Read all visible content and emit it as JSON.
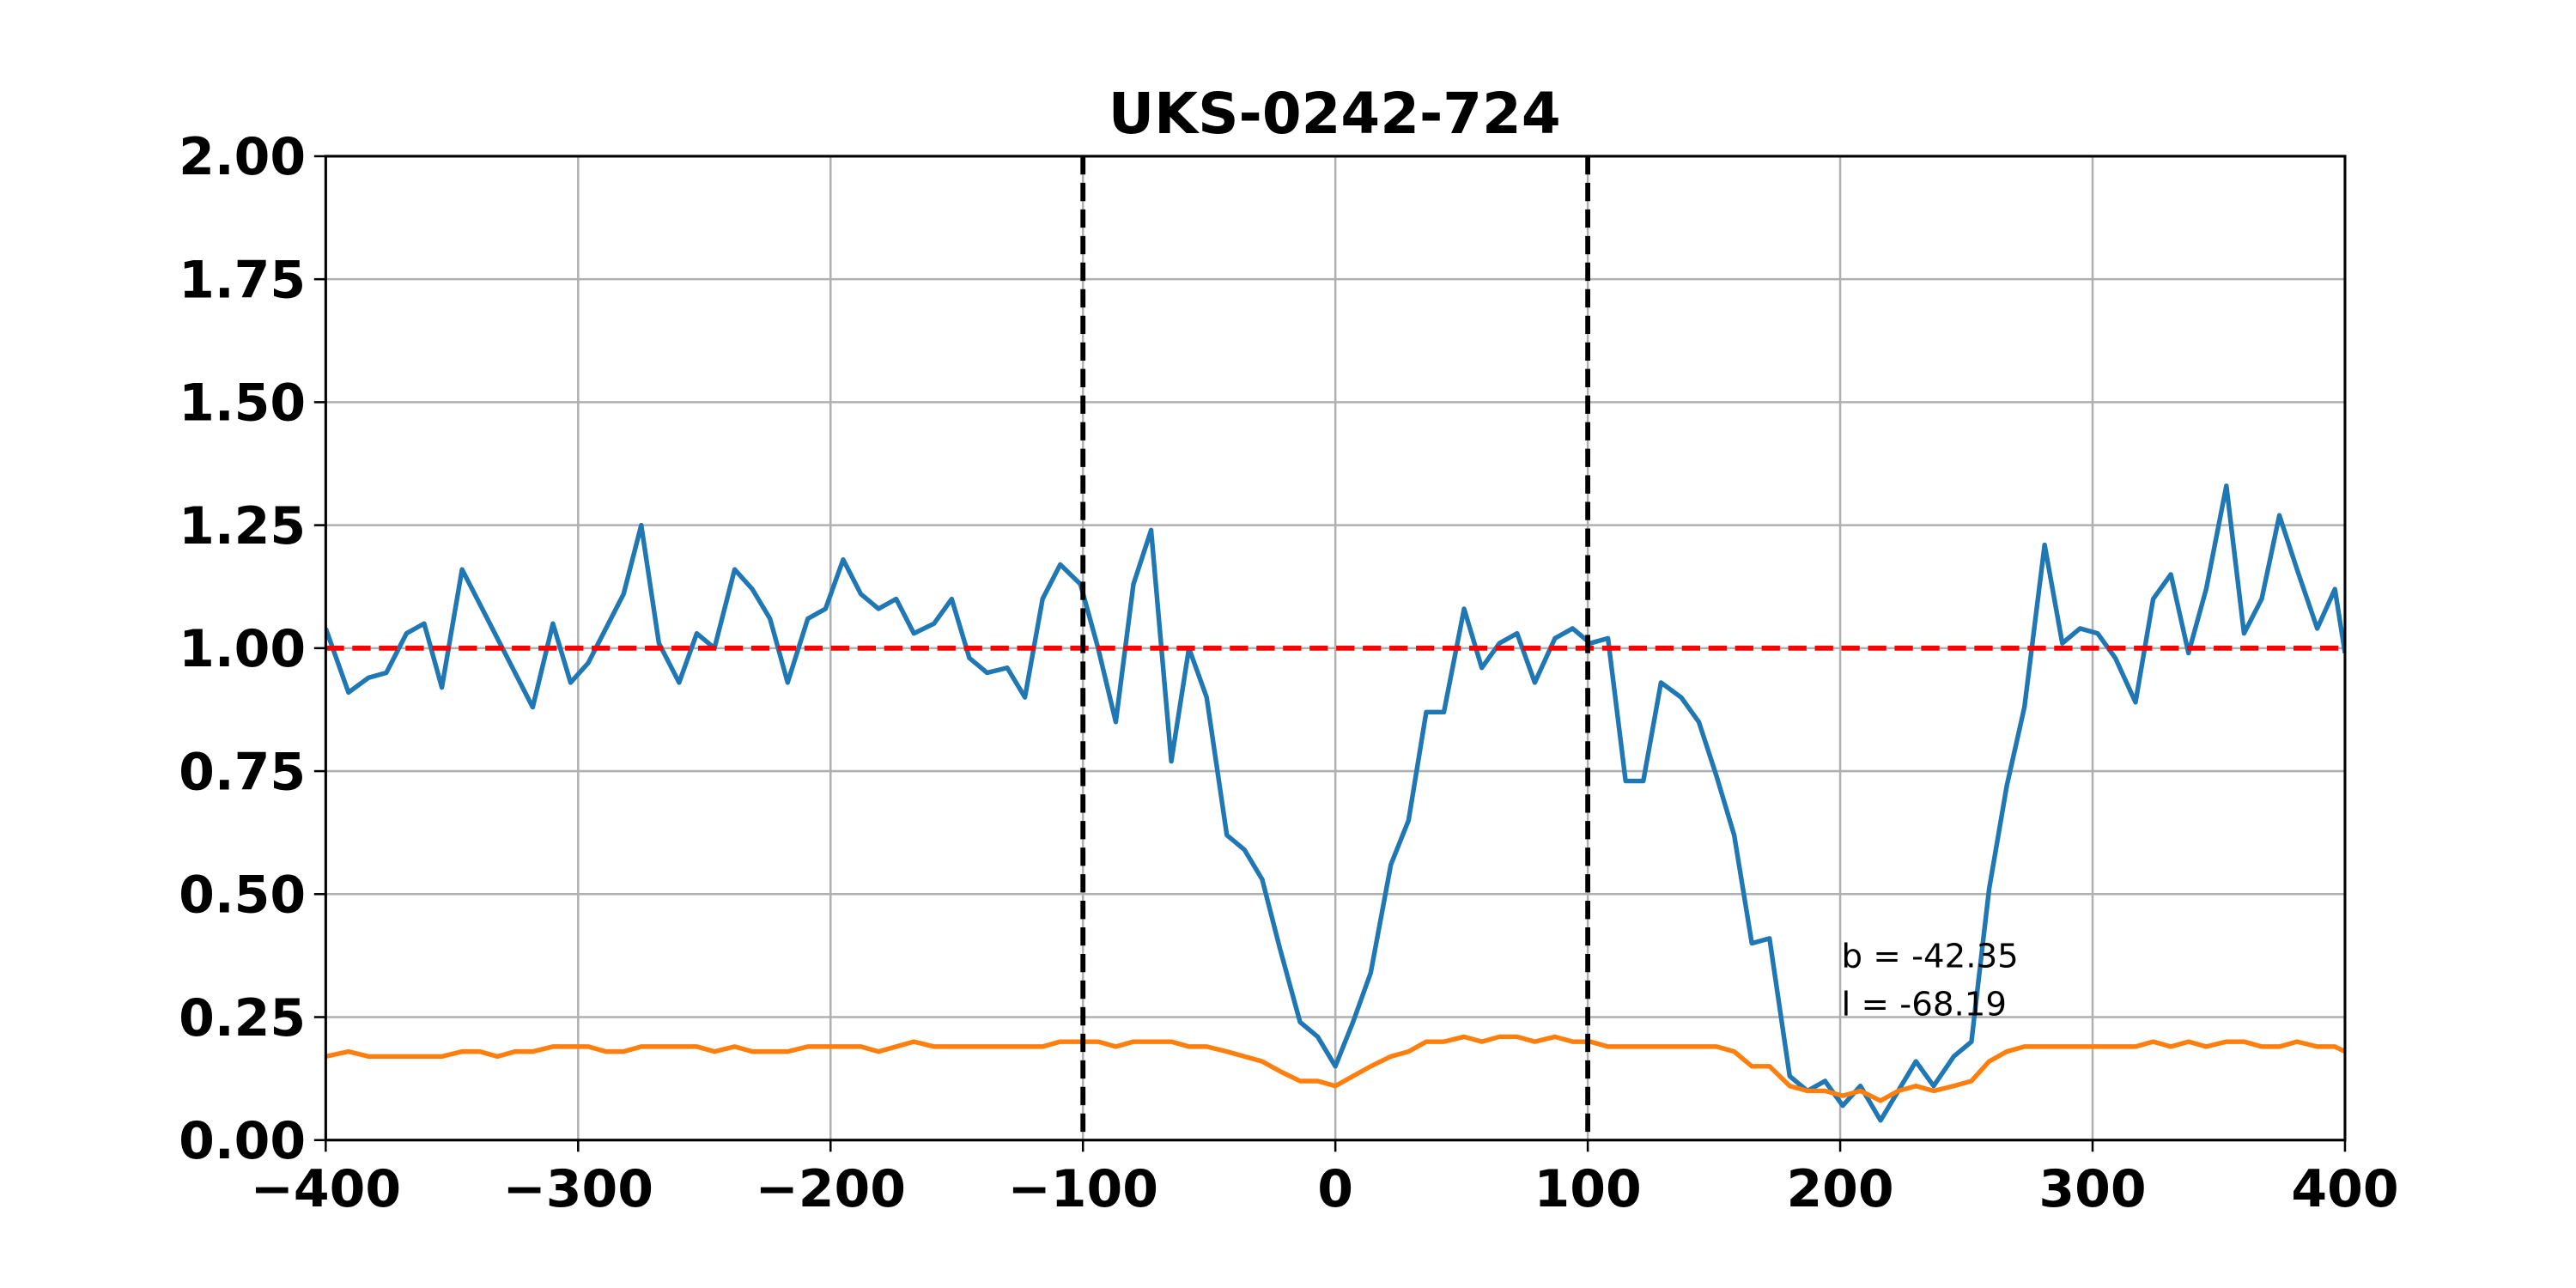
{
  "chart_data": {
    "type": "line",
    "title": "UKS-0242-724",
    "x": [
      -400,
      -391,
      -383,
      -376,
      -368,
      -361,
      -354,
      -346,
      -339,
      -332,
      -325,
      -318,
      -310,
      -303,
      -296,
      -289,
      -282,
      -275,
      -268,
      -260,
      -253,
      -246,
      -238,
      -231,
      -224,
      -217,
      -209,
      -202,
      -195,
      -188,
      -181,
      -174,
      -167,
      -159,
      -152,
      -145,
      -138,
      -130,
      -123,
      -116,
      -109,
      -101,
      -94,
      -87,
      -80,
      -73,
      -65,
      -58,
      -51,
      -43,
      -36,
      -29,
      -22,
      -14,
      -7,
      0,
      7,
      14,
      22,
      29,
      36,
      43,
      51,
      58,
      65,
      72,
      79,
      87,
      94,
      101,
      108,
      115,
      122,
      129,
      137,
      144,
      151,
      158,
      165,
      172,
      180,
      187,
      194,
      201,
      208,
      216,
      223,
      230,
      237,
      245,
      252,
      259,
      266,
      273,
      281,
      288,
      295,
      302,
      309,
      317,
      324,
      331,
      338,
      345,
      353,
      360,
      367,
      374,
      381,
      389,
      396,
      400
    ],
    "series": [
      {
        "color": "#1f77b4",
        "values": [
          1.04,
          0.91,
          0.94,
          0.95,
          1.03,
          1.05,
          0.92,
          1.16,
          1.09,
          1.02,
          0.95,
          0.88,
          1.05,
          0.93,
          0.97,
          1.04,
          1.11,
          1.25,
          1.01,
          0.93,
          1.03,
          1.0,
          1.16,
          1.12,
          1.06,
          0.93,
          1.06,
          1.08,
          1.18,
          1.11,
          1.08,
          1.1,
          1.03,
          1.05,
          1.1,
          0.98,
          0.95,
          0.96,
          0.9,
          1.1,
          1.17,
          1.13,
          1.0,
          0.85,
          1.13,
          1.24,
          0.77,
          1.0,
          0.9,
          0.62,
          0.59,
          0.53,
          0.39,
          0.24,
          0.21,
          0.15,
          0.24,
          0.34,
          0.56,
          0.65,
          0.87,
          0.87,
          1.08,
          0.96,
          1.01,
          1.03,
          0.93,
          1.02,
          1.04,
          1.01,
          1.02,
          0.73,
          0.73,
          0.93,
          0.9,
          0.85,
          0.74,
          0.62,
          0.4,
          0.41,
          0.13,
          0.1,
          0.12,
          0.07,
          0.11,
          0.04,
          0.1,
          0.16,
          0.11,
          0.17,
          0.2,
          0.51,
          0.72,
          0.88,
          1.21,
          1.01,
          1.04,
          1.03,
          0.98,
          0.89,
          1.1,
          1.15,
          0.99,
          1.12,
          1.33,
          1.03,
          1.1,
          1.27,
          1.16,
          1.04,
          1.12,
          0.99
        ]
      },
      {
        "color": "#ff7f0e",
        "values": [
          0.17,
          0.18,
          0.17,
          0.17,
          0.17,
          0.17,
          0.17,
          0.18,
          0.18,
          0.17,
          0.18,
          0.18,
          0.19,
          0.19,
          0.19,
          0.18,
          0.18,
          0.19,
          0.19,
          0.19,
          0.19,
          0.18,
          0.19,
          0.18,
          0.18,
          0.18,
          0.19,
          0.19,
          0.19,
          0.19,
          0.18,
          0.19,
          0.2,
          0.19,
          0.19,
          0.19,
          0.19,
          0.19,
          0.19,
          0.19,
          0.2,
          0.2,
          0.2,
          0.19,
          0.2,
          0.2,
          0.2,
          0.19,
          0.19,
          0.18,
          0.17,
          0.16,
          0.14,
          0.12,
          0.12,
          0.11,
          0.13,
          0.15,
          0.17,
          0.18,
          0.2,
          0.2,
          0.21,
          0.2,
          0.21,
          0.21,
          0.2,
          0.21,
          0.2,
          0.2,
          0.19,
          0.19,
          0.19,
          0.19,
          0.19,
          0.19,
          0.19,
          0.18,
          0.15,
          0.15,
          0.11,
          0.1,
          0.1,
          0.09,
          0.1,
          0.08,
          0.1,
          0.11,
          0.1,
          0.11,
          0.12,
          0.16,
          0.18,
          0.19,
          0.19,
          0.19,
          0.19,
          0.19,
          0.19,
          0.19,
          0.2,
          0.19,
          0.2,
          0.19,
          0.2,
          0.2,
          0.19,
          0.19,
          0.2,
          0.19,
          0.19,
          0.18
        ]
      }
    ],
    "hlines": [
      {
        "value": 1,
        "color": "#ff0000"
      }
    ],
    "vlines": [
      {
        "value": -100,
        "color": "#000000"
      },
      {
        "value": 100,
        "color": "#000000"
      }
    ],
    "annotations": [
      "b = -42.35",
      "l = -68.19"
    ],
    "xlim": [
      -400,
      400
    ],
    "ylim": [
      0,
      2
    ],
    "xticks": [
      {
        "value": -400,
        "label": "−400"
      },
      {
        "value": -300,
        "label": "−300"
      },
      {
        "value": -200,
        "label": "−200"
      },
      {
        "value": -100,
        "label": "−100"
      },
      0,
      100,
      200,
      300,
      400
    ],
    "yticks": [
      {
        "value": 0,
        "label": "0.00"
      },
      {
        "value": 0.25,
        "label": "0.25"
      },
      {
        "value": 0.5,
        "label": "0.50"
      },
      {
        "value": 0.75,
        "label": "0.75"
      },
      {
        "value": 1,
        "label": "1.00"
      },
      {
        "value": 1.25,
        "label": "1.25"
      },
      {
        "value": 1.5,
        "label": "1.50"
      },
      {
        "value": 1.75,
        "label": "1.75"
      },
      {
        "value": 2,
        "label": "2.00"
      }
    ],
    "grid": true
  }
}
